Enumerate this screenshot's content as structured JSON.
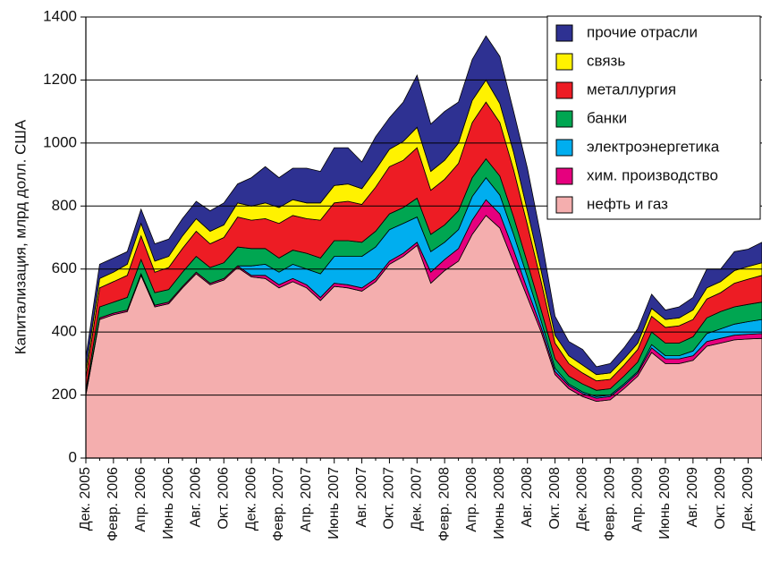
{
  "chart_data": {
    "type": "stacked_area",
    "y_label": "Капитализация, млрд долл. США",
    "categories": [
      "Дек. 2005",
      null,
      "Февр. 2006",
      null,
      "Апр. 2006",
      null,
      "Июнь 2006",
      null,
      "Авг. 2006",
      null,
      "Окт. 2006",
      null,
      "Дек. 2006",
      null,
      "Февр. 2007",
      null,
      "Апр. 2007",
      null,
      "Июнь 2007",
      null,
      "Авг. 2007",
      null,
      "Окт. 2007",
      null,
      "Дек. 2007",
      null,
      "Февр. 2008",
      null,
      "Апр. 2008",
      null,
      "Июнь 2008",
      null,
      "Авг. 2008",
      null,
      "Окт. 2008",
      null,
      "Дек. 2008",
      null,
      "Февр. 2009",
      null,
      "Апр. 2009",
      null,
      "Июнь 2009",
      null,
      "Авг. 2009",
      null,
      "Окт. 2009",
      null,
      "Дек. 2009",
      null
    ],
    "series": [
      {
        "name": "нефть и газ",
        "color": "#f4aeae",
        "values": [
          200,
          440,
          455,
          465,
          580,
          480,
          490,
          540,
          585,
          550,
          565,
          605,
          575,
          570,
          540,
          560,
          540,
          500,
          545,
          540,
          530,
          560,
          615,
          640,
          675,
          555,
          595,
          625,
          710,
          770,
          730,
          620,
          510,
          400,
          265,
          220,
          195,
          180,
          185,
          220,
          260,
          335,
          300,
          300,
          310,
          355,
          365,
          375,
          378,
          380
        ]
      },
      {
        "name": "хим. производство",
        "color": "#e6007e",
        "values": [
          5,
          5,
          5,
          5,
          5,
          5,
          5,
          5,
          5,
          5,
          5,
          5,
          5,
          10,
          10,
          10,
          10,
          10,
          10,
          10,
          10,
          10,
          10,
          10,
          10,
          35,
          35,
          40,
          45,
          50,
          45,
          40,
          25,
          15,
          10,
          10,
          10,
          10,
          10,
          10,
          10,
          15,
          15,
          15,
          15,
          15,
          15,
          15,
          15,
          15
        ]
      },
      {
        "name": "электроэнергетика",
        "color": "#00aeef",
        "values": [
          0,
          0,
          0,
          0,
          0,
          0,
          0,
          0,
          0,
          0,
          0,
          0,
          30,
          35,
          40,
          45,
          50,
          75,
          85,
          90,
          100,
          100,
          100,
          95,
          80,
          65,
          55,
          60,
          75,
          70,
          60,
          50,
          40,
          20,
          10,
          5,
          5,
          5,
          5,
          5,
          5,
          10,
          10,
          10,
          15,
          25,
          30,
          35,
          40,
          45
        ]
      },
      {
        "name": "банки",
        "color": "#00a651",
        "values": [
          10,
          35,
          35,
          40,
          45,
          40,
          40,
          45,
          50,
          50,
          50,
          60,
          55,
          50,
          45,
          45,
          50,
          50,
          50,
          50,
          45,
          50,
          50,
          50,
          60,
          55,
          55,
          60,
          60,
          60,
          60,
          55,
          45,
          35,
          30,
          25,
          25,
          20,
          20,
          25,
          30,
          40,
          40,
          40,
          45,
          50,
          55,
          55,
          55,
          55
        ]
      },
      {
        "name": "металлургия",
        "color": "#ed1c24",
        "values": [
          40,
          60,
          65,
          70,
          75,
          65,
          70,
          75,
          80,
          75,
          80,
          95,
          90,
          95,
          110,
          110,
          110,
          120,
          120,
          125,
          120,
          140,
          150,
          150,
          160,
          140,
          145,
          150,
          175,
          180,
          170,
          150,
          120,
          90,
          50,
          40,
          35,
          30,
          30,
          35,
          40,
          50,
          50,
          55,
          55,
          60,
          60,
          75,
          80,
          85
        ]
      },
      {
        "name": "связь",
        "color": "#fff200",
        "values": [
          25,
          30,
          30,
          35,
          40,
          35,
          35,
          40,
          40,
          40,
          40,
          45,
          45,
          50,
          50,
          50,
          50,
          55,
          55,
          55,
          50,
          55,
          55,
          60,
          65,
          60,
          60,
          65,
          70,
          70,
          60,
          55,
          45,
          35,
          25,
          25,
          25,
          20,
          20,
          20,
          20,
          25,
          25,
          25,
          30,
          35,
          35,
          40,
          40,
          40
        ]
      },
      {
        "name": "прочие отрасли",
        "color": "#2e3192",
        "values": [
          40,
          45,
          45,
          40,
          45,
          55,
          55,
          55,
          55,
          65,
          70,
          60,
          90,
          115,
          95,
          100,
          110,
          100,
          120,
          115,
          85,
          105,
          100,
          125,
          165,
          150,
          155,
          130,
          130,
          140,
          150,
          130,
          135,
          105,
          60,
          45,
          50,
          25,
          30,
          35,
          45,
          45,
          30,
          35,
          40,
          60,
          40,
          60,
          55,
          65
        ]
      }
    ],
    "ylim": [
      0,
      1400
    ],
    "yticks": [
      0,
      200,
      400,
      600,
      800,
      1000,
      1200,
      1400
    ],
    "grid": true,
    "legend": "upper right"
  }
}
